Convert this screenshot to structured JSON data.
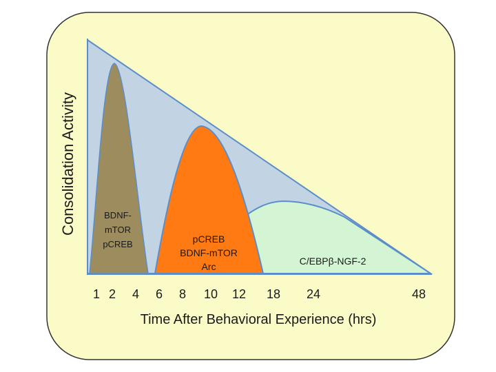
{
  "chart_data": {
    "type": "area",
    "ylabel": "Consolidation Activity",
    "xlabel": "Time After Behavioral Experience (hrs)",
    "x_ticks": [
      "1",
      "2",
      "4",
      "6",
      "8",
      "10",
      "12",
      "18",
      "24",
      "48"
    ],
    "series": [
      {
        "labels": [
          "BDNF-",
          "mTOR",
          "pCREB"
        ],
        "fill": "#9c8c5e",
        "peak_x": 2
      },
      {
        "labels": [
          "pCREB",
          "BDNF-mTOR",
          "Arc"
        ],
        "fill": "#ff7a12",
        "peak_x": 9.5
      },
      {
        "labels": [
          "C/EBPβ-NGF-2"
        ],
        "fill": "#d4f5d4",
        "peak_x": 20
      }
    ],
    "envelope_fill": "#c2d3e3",
    "panel_fill": "#fbfbc8"
  }
}
